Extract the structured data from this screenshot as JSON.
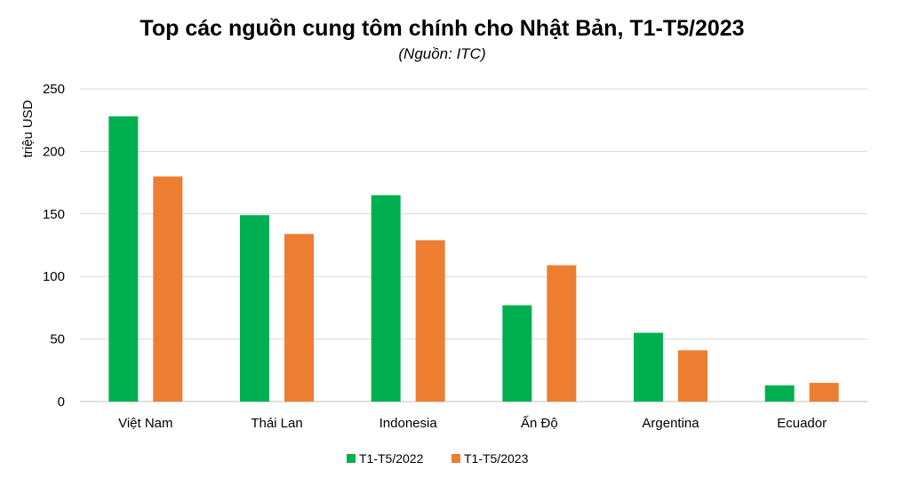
{
  "chart_data": {
    "type": "bar",
    "title": "Top các nguồn cung tôm chính cho Nhật Bản, T1-T5/2023",
    "subtitle": "(Nguồn: ITC)",
    "ylabel": "triệu USD",
    "xlabel": "",
    "ylim": [
      0,
      250
    ],
    "yticks": [
      0,
      50,
      100,
      150,
      200,
      250
    ],
    "grid": true,
    "legend_position": "bottom",
    "categories": [
      "Việt Nam",
      "Thái Lan",
      "Indonesia",
      "Ấn Độ",
      "Argentina",
      "Ecuador"
    ],
    "series": [
      {
        "name": "T1-T5/2022",
        "color": "#00B050",
        "values": [
          228,
          149,
          165,
          77,
          55,
          13
        ]
      },
      {
        "name": "T1-T5/2023",
        "color": "#ED7D31",
        "values": [
          180,
          134,
          129,
          109,
          41,
          15
        ]
      }
    ]
  }
}
